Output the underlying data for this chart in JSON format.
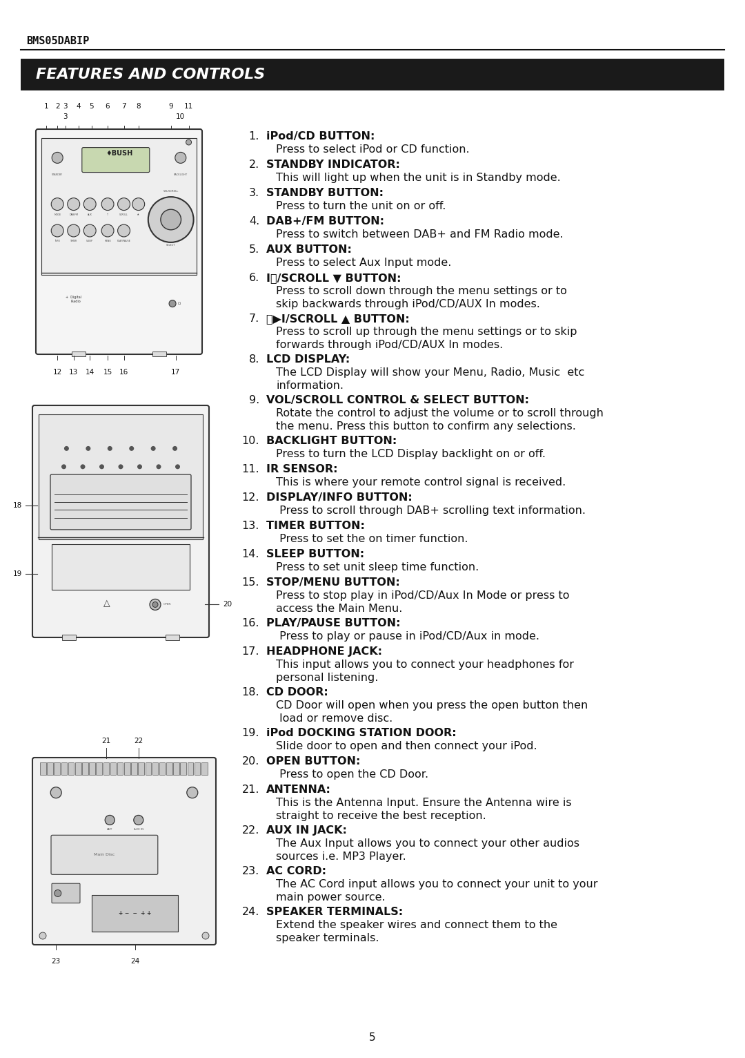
{
  "model": "BMS05DABIP",
  "section_title": "FEATURES AND CONTROLS",
  "page_number": "5",
  "bg_color": "#ffffff",
  "header_bg": "#1a1a1a",
  "header_text_color": "#ffffff",
  "body_text_color": "#111111",
  "items": [
    {
      "num": "1.",
      "bold": "iPod/CD BUTTON:",
      "text": "Press to select iPod or CD function."
    },
    {
      "num": "2.",
      "bold": "STANDBY INDICATOR:",
      "text": "This will light up when the unit is in Standby mode."
    },
    {
      "num": "3.",
      "bold": "STANDBY BUTTON:",
      "text": "Press to turn the unit on or off."
    },
    {
      "num": "4.",
      "bold": "DAB+/FM BUTTON:",
      "text": "Press to switch between DAB+ and FM Radio mode."
    },
    {
      "num": "5.",
      "bold": "AUX BUTTON:",
      "text": "Press to select Aux Input mode."
    },
    {
      "num": "6.",
      "bold": "I⏮/SCROLL ▼ BUTTON:",
      "text": "Press to scroll down through the menu settings or to\nskip backwards through iPod/CD/AUX In modes."
    },
    {
      "num": "7.",
      "bold": "⏭▶I/SCROLL ▲ BUTTON:",
      "text": "Press to scroll up through the menu settings or to skip\nforwards through iPod/CD/AUX In modes."
    },
    {
      "num": "8.",
      "bold": "LCD DISPLAY:",
      "text": "The LCD Display will show your Menu, Radio, Music  etc\ninformation."
    },
    {
      "num": "9.",
      "bold": "VOL/SCROLL CONTROL & SELECT BUTTON:",
      "text": "Rotate the control to adjust the volume or to scroll through\nthe menu. Press this button to confirm any selections."
    },
    {
      "num": "10.",
      "bold": "BACKLIGHT BUTTON:",
      "text": "Press to turn the LCD Display backlight on or off."
    },
    {
      "num": "11.",
      "bold": "IR SENSOR:",
      "text": "This is where your remote control signal is received."
    },
    {
      "num": "12.",
      "bold": "DISPLAY/INFO BUTTON:",
      "text": " Press to scroll through DAB+ scrolling text information."
    },
    {
      "num": "13.",
      "bold": "TIMER BUTTON:",
      "text": " Press to set the on timer function."
    },
    {
      "num": "14.",
      "bold": "SLEEP BUTTON:",
      "text": "Press to set unit sleep time function."
    },
    {
      "num": "15.",
      "bold": "STOP/MENU BUTTON:",
      "text": "Press to stop play in iPod/CD/Aux In Mode or press to\naccess the Main Menu."
    },
    {
      "num": "16.",
      "bold": "PLAY/PAUSE BUTTON:",
      "text": " Press to play or pause in iPod/CD/Aux in mode."
    },
    {
      "num": "17.",
      "bold": "HEADPHONE JACK:",
      "text": "This input allows you to connect your headphones for\npersonal listening."
    },
    {
      "num": "18.",
      "bold": "CD DOOR:",
      "text": "CD Door will open when you press the open button then\n load or remove disc."
    },
    {
      "num": "19.",
      "bold": "iPod DOCKING STATION DOOR:",
      "text": "Slide door to open and then connect your iPod."
    },
    {
      "num": "20.",
      "bold": "OPEN BUTTON:",
      "text": " Press to open the CD Door."
    },
    {
      "num": "21.",
      "bold": "ANTENNA:",
      "text": "This is the Antenna Input. Ensure the Antenna wire is\nstraight to receive the best reception."
    },
    {
      "num": "22.",
      "bold": "AUX IN JACK:",
      "text": "The Aux Input allows you to connect your other audios\nsources i.e. MP3 Player."
    },
    {
      "num": "23.",
      "bold": "AC CORD:",
      "text": "The AC Cord input allows you to connect your unit to your\nmain power source."
    },
    {
      "num": "24.",
      "bold": "SPEAKER TERMINALS:",
      "text": "Extend the speaker wires and connect them to the\nspeaker terminals."
    }
  ]
}
